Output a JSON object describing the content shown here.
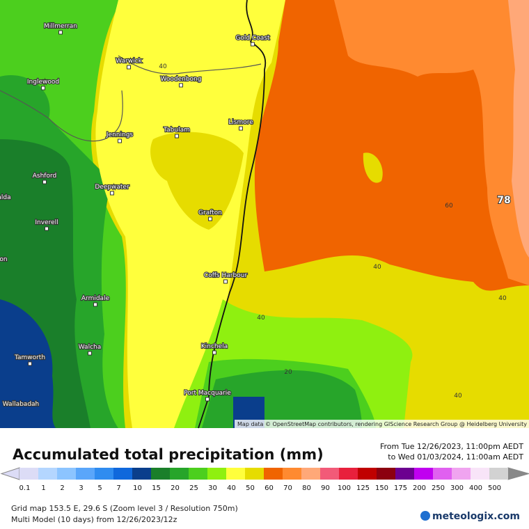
{
  "map": {
    "places": [
      "Millmerran",
      "Warwick",
      "Inglewood",
      "Woodenbong",
      "Jennings",
      "Tabulam",
      "Lismore",
      "Gold Coast",
      "Ashford",
      "Deepwater",
      "Grafton",
      "Inverell",
      "Coffs Harbour",
      "Armidale",
      "Walcha",
      "Kinchela",
      "Tamworth",
      "Port Macquarie",
      "Wallabadah",
      "alda",
      "on"
    ],
    "contour_labels": [
      "40",
      "60",
      "40",
      "40",
      "40",
      "20",
      "40"
    ],
    "max_label": "78",
    "attribution": "Map data © OpenStreetMap contributors, rendering GIScience Research Group @ Heidelberg University"
  },
  "title": "Accumulated total precipitation (mm)",
  "period": {
    "from": "From Tue 12/26/2023, 11:00pm AEDT",
    "to": "to Wed 01/03/2024, 11:00am AEDT"
  },
  "legend": {
    "labels": [
      "0.1",
      "1",
      "2",
      "3",
      "5",
      "7",
      "10",
      "15",
      "20",
      "25",
      "30",
      "40",
      "50",
      "60",
      "70",
      "80",
      "90",
      "100",
      "125",
      "150",
      "175",
      "200",
      "250",
      "300",
      "400",
      "500"
    ],
    "colors": [
      "#dcdcf6",
      "#b4d6ff",
      "#8cc4ff",
      "#5aa6fa",
      "#2f8cf0",
      "#1068dc",
      "#0a3e8c",
      "#1a7f2a",
      "#27a52a",
      "#4ccf1e",
      "#8ff010",
      "#ffff3c",
      "#e6dc00",
      "#f06400",
      "#ff8a30",
      "#ffa878",
      "#f25a78",
      "#e8203c",
      "#c00000",
      "#8c0010",
      "#6c0090",
      "#c000f0",
      "#e060f0",
      "#f0a4f0",
      "#f8e4f8",
      "#d2d2d2"
    ]
  },
  "footer": {
    "grid": "Grid map 153.5 E, 29.6 S (Zoom level 3 / Resolution 750m)",
    "model": "Multi Model (10 days) from 12/26/2023/12z"
  },
  "brand": "meteologix.com"
}
